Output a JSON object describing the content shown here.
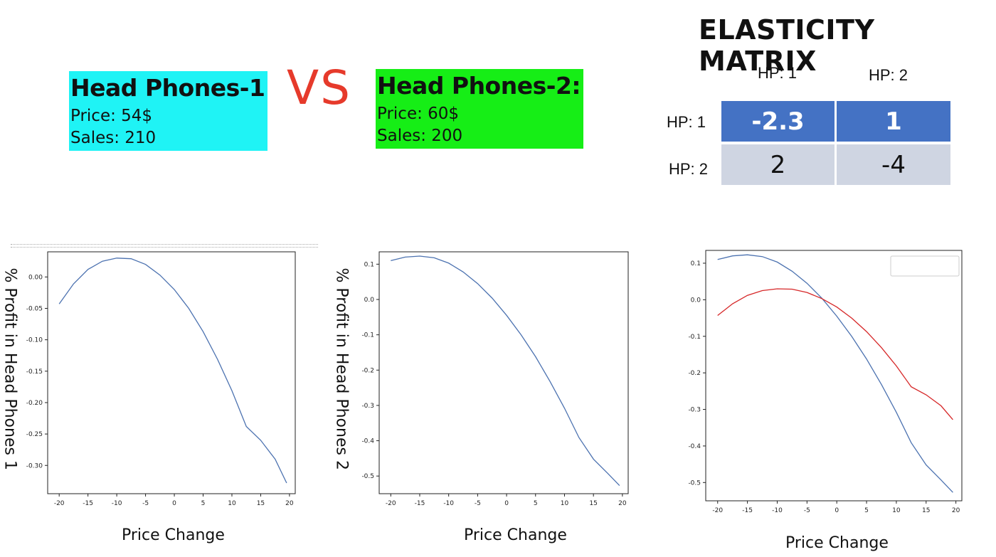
{
  "products": [
    {
      "title": "Head Phones-1",
      "price": "Price: 54$",
      "sales": "Sales: 210",
      "color": "#1ff3f5"
    },
    {
      "title": "Head Phones-2:",
      "price": "Price: 60$",
      "sales": "Sales: 200",
      "color": "#16ee16"
    }
  ],
  "vs": "VS",
  "matrix": {
    "title": "ELASTICITY MATRIX",
    "col_headers": [
      "HP: 1",
      "HP: 2"
    ],
    "row_headers": [
      "HP: 1",
      "HP: 2"
    ],
    "cells": [
      [
        "-2.3",
        "1"
      ],
      [
        "2",
        "-4"
      ]
    ],
    "colors": {
      "header_row": "#4472c4",
      "body_row": "#cfd5e2"
    }
  },
  "chart_data": [
    {
      "type": "line",
      "ylabel": "% Profit in Head Phones 1",
      "xlabel": "Price Change",
      "xlim": [
        -22,
        21
      ],
      "ylim": [
        -0.345,
        0.04
      ],
      "xticks": [
        -20,
        -15,
        -10,
        -5,
        0,
        5,
        10,
        15,
        20
      ],
      "yticks": [
        0.0,
        -0.05,
        -0.1,
        -0.15,
        -0.2,
        -0.25,
        -0.3
      ],
      "ytick_labels": [
        "0.00",
        "-0.05",
        "-0.10",
        "-0.15",
        "-0.20",
        "-0.25",
        "-0.30"
      ],
      "series": [
        {
          "color": "#4c72b0",
          "x": [
            -20,
            -17.5,
            -15,
            -12.5,
            -10,
            -7.5,
            -5,
            -2.5,
            0,
            2.5,
            5,
            7.5,
            10,
            12.5,
            15,
            17.5,
            19.5
          ],
          "y": [
            -0.043,
            -0.011,
            0.012,
            0.025,
            0.03,
            0.029,
            0.02,
            0.003,
            -0.02,
            -0.05,
            -0.087,
            -0.131,
            -0.181,
            -0.238,
            -0.26,
            -0.29,
            -0.328
          ]
        }
      ]
    },
    {
      "type": "line",
      "ylabel": "% Profit in Head Phones 2",
      "xlabel": "Price Change",
      "xlim": [
        -22,
        21
      ],
      "ylim": [
        -0.55,
        0.135
      ],
      "xticks": [
        -20,
        -15,
        -10,
        -5,
        0,
        5,
        10,
        15,
        20
      ],
      "yticks": [
        0.1,
        0.0,
        -0.1,
        -0.2,
        -0.3,
        -0.4,
        -0.5
      ],
      "ytick_labels": [
        "0.1",
        "0.0",
        "-0.1",
        "-0.2",
        "-0.3",
        "-0.4",
        "-0.5"
      ],
      "series": [
        {
          "color": "#4c72b0",
          "x": [
            -20,
            -17.5,
            -15,
            -12.5,
            -10,
            -7.5,
            -5,
            -2.5,
            0,
            2.5,
            5,
            7.5,
            10,
            12.5,
            15,
            17.5,
            19.5
          ],
          "y": [
            0.11,
            0.12,
            0.123,
            0.118,
            0.103,
            0.078,
            0.045,
            0.004,
            -0.045,
            -0.1,
            -0.162,
            -0.232,
            -0.308,
            -0.391,
            -0.452,
            -0.493,
            -0.527
          ]
        }
      ]
    },
    {
      "type": "line",
      "ylabel": "",
      "xlabel": "Price Change",
      "xlim": [
        -22,
        21
      ],
      "ylim": [
        -0.55,
        0.135
      ],
      "xticks": [
        -20,
        -15,
        -10,
        -5,
        0,
        5,
        10,
        15,
        20
      ],
      "yticks": [
        0.1,
        0.0,
        -0.1,
        -0.2,
        -0.3,
        -0.4,
        -0.5
      ],
      "ytick_labels": [
        "0.1",
        "0.0",
        "-0.1",
        "-0.2",
        "-0.3",
        "-0.4",
        "-0.5"
      ],
      "legend": "top-right",
      "series": [
        {
          "color": "#4c72b0",
          "x": [
            -20,
            -17.5,
            -15,
            -12.5,
            -10,
            -7.5,
            -5,
            -2.5,
            0,
            2.5,
            5,
            7.5,
            10,
            12.5,
            15,
            17.5,
            19.5
          ],
          "y": [
            0.11,
            0.12,
            0.123,
            0.118,
            0.103,
            0.078,
            0.045,
            0.004,
            -0.045,
            -0.1,
            -0.162,
            -0.232,
            -0.308,
            -0.391,
            -0.452,
            -0.493,
            -0.527
          ]
        },
        {
          "color": "#d62728",
          "x": [
            -20,
            -17.5,
            -15,
            -12.5,
            -10,
            -7.5,
            -5,
            -2.5,
            0,
            2.5,
            5,
            7.5,
            10,
            12.5,
            15,
            17.5,
            19.5
          ],
          "y": [
            -0.043,
            -0.011,
            0.012,
            0.025,
            0.03,
            0.029,
            0.02,
            0.003,
            -0.02,
            -0.05,
            -0.087,
            -0.131,
            -0.181,
            -0.238,
            -0.26,
            -0.29,
            -0.328
          ]
        }
      ]
    }
  ]
}
